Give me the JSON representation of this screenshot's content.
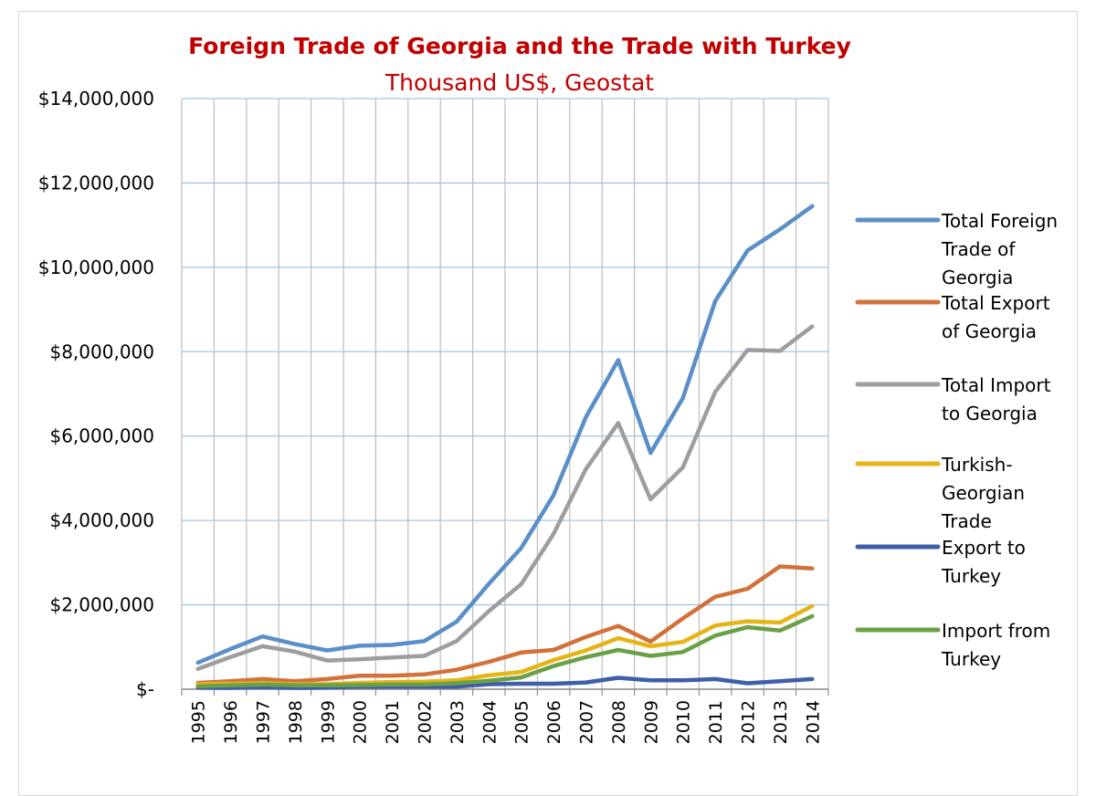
{
  "chart_data": {
    "type": "line",
    "title": "Foreign Trade of Georgia and the Trade with Turkey",
    "subtitle": "Thousand US$, Geostat",
    "xlabel": "",
    "ylabel": "",
    "ylim": [
      0,
      14000000
    ],
    "yticks": [
      0,
      2000000,
      4000000,
      6000000,
      8000000,
      10000000,
      12000000,
      14000000
    ],
    "ytick_labels": [
      "$-",
      "$2,000,000",
      "$4,000,000",
      "$6,000,000",
      "$8,000,000",
      "$10,000,000",
      "$12,000,000",
      "$14,000,000"
    ],
    "grid": true,
    "legend_position": "right",
    "categories": [
      "1995",
      "1996",
      "1997",
      "1998",
      "1999",
      "2000",
      "2001",
      "2002",
      "2003",
      "2004",
      "2005",
      "2006",
      "2007",
      "2008",
      "2009",
      "2010",
      "2011",
      "2012",
      "2013",
      "2014"
    ],
    "series": [
      {
        "name": "Total Foreign Trade of Georgia",
        "legend_lines": [
          "Total Foreign",
          "Trade of",
          "Georgia"
        ],
        "color": "#5b8fc7",
        "values": [
          630000,
          950000,
          1250000,
          1070000,
          920000,
          1030000,
          1050000,
          1140000,
          1600000,
          2500000,
          3350000,
          4600000,
          6450000,
          7800000,
          5600000,
          6900000,
          9200000,
          10400000,
          10900000,
          11450000
        ]
      },
      {
        "name": "Total Export of Georgia",
        "legend_lines": [
          "Total Export",
          "of Georgia"
        ],
        "color": "#d2723a",
        "values": [
          150000,
          190000,
          240000,
          190000,
          240000,
          320000,
          320000,
          350000,
          460000,
          650000,
          870000,
          930000,
          1240000,
          1500000,
          1130000,
          1680000,
          2190000,
          2380000,
          2910000,
          2860000
        ]
      },
      {
        "name": "Total Import to Georgia",
        "legend_lines": [
          "Total Import",
          "to Georgia"
        ],
        "color": "#9e9e9e",
        "values": [
          480000,
          760000,
          1020000,
          890000,
          680000,
          710000,
          750000,
          790000,
          1140000,
          1850000,
          2490000,
          3680000,
          5220000,
          6310000,
          4500000,
          5260000,
          7050000,
          8040000,
          8020000,
          8600000
        ]
      },
      {
        "name": "Turkish-Georgian Trade",
        "legend_lines": [
          "Turkish-",
          "Georgian",
          "Trade"
        ],
        "color": "#e7b416",
        "values": [
          120000,
          130000,
          140000,
          120000,
          120000,
          150000,
          170000,
          180000,
          210000,
          330000,
          410000,
          690000,
          920000,
          1210000,
          1020000,
          1120000,
          1510000,
          1610000,
          1580000,
          1970000
        ]
      },
      {
        "name": "Export to Turkey",
        "legend_lines": [
          "Export to",
          "Turkey"
        ],
        "color": "#3f5fa8",
        "values": [
          40000,
          30000,
          50000,
          30000,
          40000,
          60000,
          60000,
          60000,
          60000,
          120000,
          130000,
          130000,
          160000,
          270000,
          210000,
          210000,
          240000,
          140000,
          190000,
          240000
        ]
      },
      {
        "name": "Import from Turkey",
        "legend_lines": [
          "Import from",
          "Turkey"
        ],
        "color": "#6aa047",
        "values": [
          70000,
          90000,
          110000,
          90000,
          90000,
          100000,
          110000,
          110000,
          140000,
          200000,
          280000,
          550000,
          760000,
          930000,
          790000,
          880000,
          1270000,
          1470000,
          1390000,
          1730000
        ]
      }
    ]
  }
}
